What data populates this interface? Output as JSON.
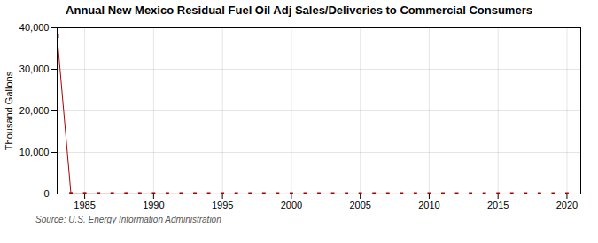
{
  "chart_data": {
    "type": "line",
    "title": "Annual New Mexico Residual Fuel Oil Adj Sales/Deliveries to Commercial Consumers",
    "ylabel": "Thousand Gallons",
    "source": "Source: U.S. Energy Information Administration",
    "x": [
      1983,
      1984,
      1985,
      1986,
      1987,
      1988,
      1989,
      1990,
      1991,
      1992,
      1993,
      1994,
      1995,
      1996,
      1997,
      1998,
      1999,
      2000,
      2001,
      2002,
      2003,
      2004,
      2005,
      2006,
      2007,
      2008,
      2009,
      2010,
      2011,
      2012,
      2013,
      2014,
      2015,
      2016,
      2017,
      2018,
      2019,
      2020
    ],
    "values": [
      38000,
      50,
      40,
      35,
      30,
      25,
      25,
      20,
      20,
      15,
      15,
      15,
      10,
      10,
      10,
      10,
      10,
      10,
      10,
      10,
      10,
      10,
      10,
      10,
      10,
      10,
      10,
      10,
      5,
      5,
      5,
      5,
      5,
      5,
      5,
      5,
      5,
      5
    ],
    "color": "#aa0000",
    "marker": "square",
    "xlim": [
      1983,
      2021
    ],
    "xticks": [
      1985,
      1990,
      1995,
      2000,
      2005,
      2010,
      2015,
      2020
    ],
    "ylim": [
      0,
      40000
    ],
    "yticks": [
      0,
      {
        "value": 10000,
        "label": "10,000"
      },
      {
        "value": 20000,
        "label": "20,000"
      },
      {
        "value": 30000,
        "label": "30,000"
      },
      {
        "value": 40000,
        "label": "40,000"
      }
    ],
    "grid": true
  }
}
